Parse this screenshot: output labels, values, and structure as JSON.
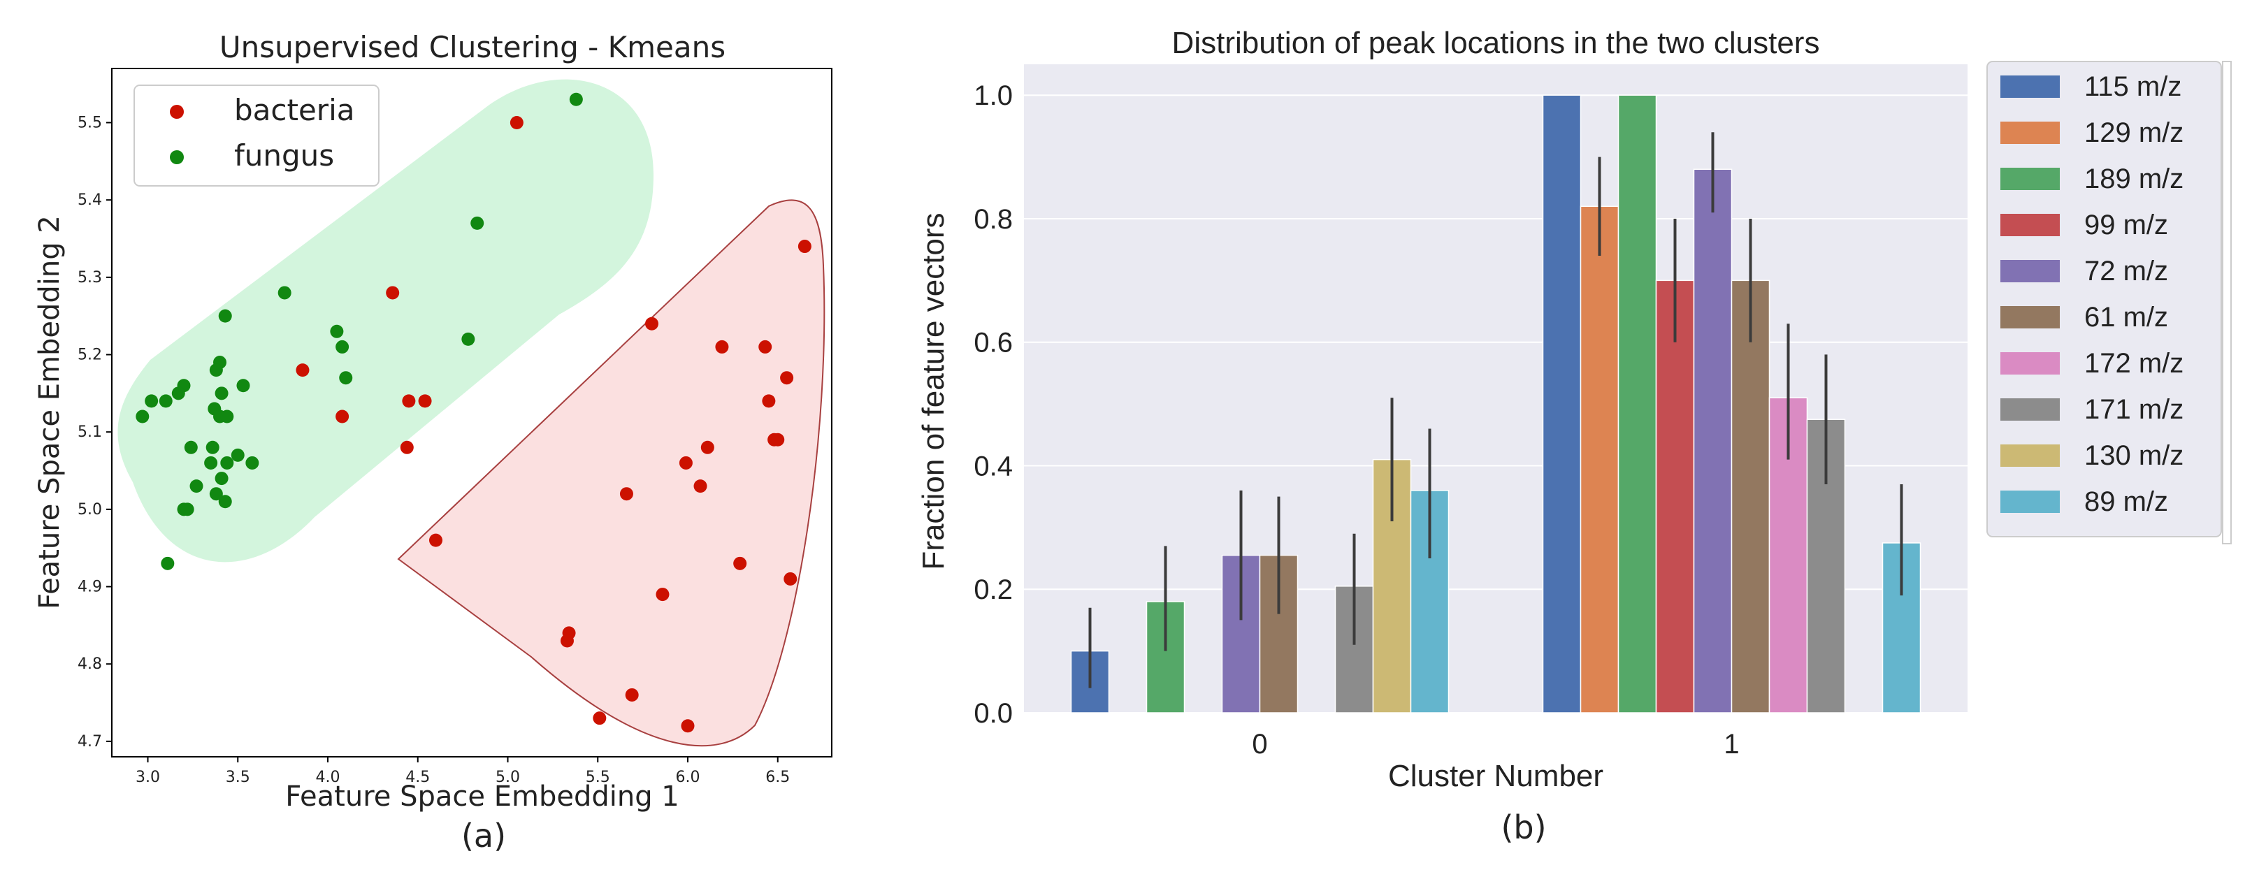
{
  "chart_data": [
    {
      "type": "scatter",
      "panel_label": "(a)",
      "title": "Unsupervised Clustering - Kmeans",
      "xlabel": "Feature Space Embedding 1",
      "ylabel": "Feature Space Embedding 2",
      "xlim": [
        2.8,
        6.8
      ],
      "ylim": [
        4.68,
        5.57
      ],
      "xticks": [
        "3.0",
        "3.5",
        "4.0",
        "4.5",
        "5.0",
        "5.5",
        "6.0",
        "6.5"
      ],
      "yticks": [
        "4.7",
        "4.8",
        "4.9",
        "5.0",
        "5.1",
        "5.2",
        "5.3",
        "5.4",
        "5.5"
      ],
      "legend_position": "top-left",
      "series": [
        {
          "name": "bacteria",
          "color": "#cc1100",
          "points": [
            [
              5.05,
              5.5
            ],
            [
              4.36,
              5.28
            ],
            [
              3.86,
              5.18
            ],
            [
              4.08,
              5.12
            ],
            [
              4.54,
              5.14
            ],
            [
              4.45,
              5.14
            ],
            [
              4.44,
              5.08
            ],
            [
              4.6,
              4.96
            ],
            [
              5.8,
              5.24
            ],
            [
              6.19,
              5.21
            ],
            [
              6.65,
              5.34
            ],
            [
              6.43,
              5.21
            ],
            [
              6.55,
              5.17
            ],
            [
              6.45,
              5.14
            ],
            [
              6.48,
              5.09
            ],
            [
              6.5,
              5.09
            ],
            [
              6.11,
              5.08
            ],
            [
              5.99,
              5.06
            ],
            [
              6.07,
              5.03
            ],
            [
              5.66,
              5.02
            ],
            [
              6.29,
              4.93
            ],
            [
              6.57,
              4.91
            ],
            [
              5.86,
              4.89
            ],
            [
              5.34,
              4.84
            ],
            [
              5.33,
              4.83
            ],
            [
              5.69,
              4.76
            ],
            [
              5.51,
              4.73
            ],
            [
              6.0,
              4.72
            ]
          ]
        },
        {
          "name": "fungus",
          "color": "#118811",
          "points": [
            [
              5.38,
              5.53
            ],
            [
              4.83,
              5.37
            ],
            [
              3.76,
              5.28
            ],
            [
              3.43,
              5.25
            ],
            [
              4.05,
              5.23
            ],
            [
              4.78,
              5.22
            ],
            [
              4.08,
              5.21
            ],
            [
              3.4,
              5.19
            ],
            [
              3.38,
              5.18
            ],
            [
              3.53,
              5.16
            ],
            [
              3.2,
              5.16
            ],
            [
              3.17,
              5.15
            ],
            [
              3.41,
              5.15
            ],
            [
              3.02,
              5.14
            ],
            [
              3.1,
              5.14
            ],
            [
              4.1,
              5.17
            ],
            [
              2.97,
              5.12
            ],
            [
              3.37,
              5.13
            ],
            [
              3.4,
              5.12
            ],
            [
              3.44,
              5.12
            ],
            [
              3.24,
              5.08
            ],
            [
              3.36,
              5.08
            ],
            [
              3.5,
              5.07
            ],
            [
              3.35,
              5.06
            ],
            [
              3.44,
              5.06
            ],
            [
              3.58,
              5.06
            ],
            [
              3.41,
              5.04
            ],
            [
              3.27,
              5.03
            ],
            [
              3.38,
              5.02
            ],
            [
              3.43,
              5.01
            ],
            [
              3.2,
              5.0
            ],
            [
              3.22,
              5.0
            ],
            [
              3.11,
              4.93
            ]
          ]
        }
      ],
      "cluster_regions": [
        {
          "name": "fungus-cluster",
          "color": "#d3f5dd"
        },
        {
          "name": "bacteria-cluster",
          "color": "#fbe0e0",
          "outline": "#a84040"
        }
      ]
    },
    {
      "type": "bar",
      "panel_label": "(b)",
      "title": "Distribution of peak locations in the two clusters",
      "xlabel": "Cluster Number",
      "ylabel": "Fraction of feature vectors",
      "categories": [
        "0",
        "1"
      ],
      "ylim": [
        0,
        1.05
      ],
      "yticks": [
        "0.0",
        "0.2",
        "0.4",
        "0.6",
        "0.8",
        "1.0"
      ],
      "legend_position": "right",
      "series": [
        {
          "name": "115 m/z",
          "color": "#4c72b0",
          "values": [
            0.1,
            1.0
          ],
          "err_low": [
            0.04,
            1.0
          ],
          "err_high": [
            0.17,
            1.0
          ]
        },
        {
          "name": "129 m/z",
          "color": "#dd8452",
          "values": [
            0.0,
            0.82
          ],
          "err_low": [
            0.0,
            0.74
          ],
          "err_high": [
            0.0,
            0.9
          ]
        },
        {
          "name": "189 m/z",
          "color": "#55a868",
          "values": [
            0.18,
            1.0
          ],
          "err_low": [
            0.1,
            1.0
          ],
          "err_high": [
            0.27,
            1.0
          ]
        },
        {
          "name": "99 m/z",
          "color": "#c44e52",
          "values": [
            0.0,
            0.7
          ],
          "err_low": [
            0.0,
            0.6
          ],
          "err_high": [
            0.0,
            0.8
          ]
        },
        {
          "name": "72 m/z",
          "color": "#8172b3",
          "values": [
            0.255,
            0.88
          ],
          "err_low": [
            0.15,
            0.81
          ],
          "err_high": [
            0.36,
            0.94
          ]
        },
        {
          "name": "61 m/z",
          "color": "#937860",
          "values": [
            0.255,
            0.7
          ],
          "err_low": [
            0.16,
            0.6
          ],
          "err_high": [
            0.35,
            0.8
          ]
        },
        {
          "name": "172 m/z",
          "color": "#da8bc3",
          "values": [
            0.0,
            0.51
          ],
          "err_low": [
            0.0,
            0.41
          ],
          "err_high": [
            0.0,
            0.63
          ]
        },
        {
          "name": "171 m/z",
          "color": "#8c8c8c",
          "values": [
            0.205,
            0.475
          ],
          "err_low": [
            0.11,
            0.37
          ],
          "err_high": [
            0.29,
            0.58
          ]
        },
        {
          "name": "130 m/z",
          "color": "#ccb974",
          "values": [
            0.41,
            0.0
          ],
          "err_low": [
            0.31,
            0.0
          ],
          "err_high": [
            0.51,
            0.0
          ]
        },
        {
          "name": "89 m/z",
          "color": "#64b5cd",
          "values": [
            0.36,
            0.275
          ],
          "err_low": [
            0.25,
            0.19
          ],
          "err_high": [
            0.46,
            0.37
          ]
        }
      ]
    }
  ]
}
